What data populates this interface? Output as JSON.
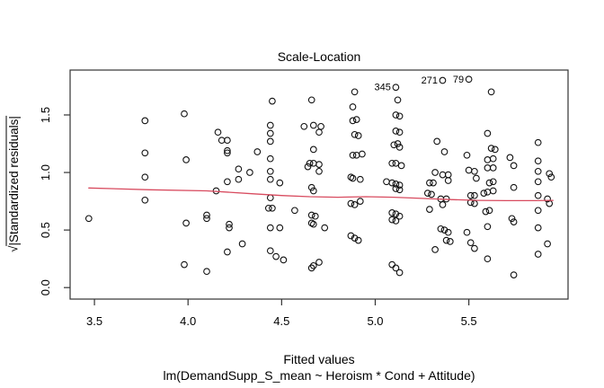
{
  "chart_data": {
    "type": "scatter",
    "title": "Scale-Location",
    "xlabel": "Fitted values",
    "xlabel2": "lm(DemandSupp_S_mean ~ Heroism * Cond + Attitude)",
    "ylabel": "√|Standardized residuals|",
    "ylabel_sqrt": "√",
    "ylabel_rest": "|Standardized residuals|",
    "x_range": [
      3.37,
      6.03
    ],
    "y_range": [
      -0.1,
      1.89
    ],
    "grid": false,
    "x_ticks": [
      {
        "value": 3.5,
        "label": "3.5"
      },
      {
        "value": 4.0,
        "label": "4.0"
      },
      {
        "value": 4.5,
        "label": "4.5"
      },
      {
        "value": 5.0,
        "label": "5.0"
      },
      {
        "value": 5.5,
        "label": "5.5"
      }
    ],
    "y_ticks": [
      {
        "value": 0.0,
        "label": "0.0"
      },
      {
        "value": 0.5,
        "label": "0.5"
      },
      {
        "value": 1.0,
        "label": "1.0"
      },
      {
        "value": 1.5,
        "label": "1.5"
      }
    ],
    "point_style": {
      "shape": "open-circle",
      "radius": 3.3,
      "stroke": "#111111"
    },
    "smoother_color": "#d84b5f",
    "labeled_points": [
      {
        "label": "345",
        "x": 5.11,
        "y": 1.74
      },
      {
        "label": "271",
        "x": 5.36,
        "y": 1.8
      },
      {
        "label": "79",
        "x": 5.5,
        "y": 1.81
      }
    ],
    "smoother": [
      [
        3.47,
        0.865
      ],
      [
        3.8,
        0.85
      ],
      [
        4.1,
        0.84
      ],
      [
        4.35,
        0.815
      ],
      [
        4.5,
        0.8
      ],
      [
        4.65,
        0.79
      ],
      [
        4.8,
        0.785
      ],
      [
        4.95,
        0.79
      ],
      [
        5.1,
        0.785
      ],
      [
        5.25,
        0.775
      ],
      [
        5.4,
        0.765
      ],
      [
        5.55,
        0.758
      ],
      [
        5.7,
        0.755
      ],
      [
        5.85,
        0.755
      ],
      [
        5.95,
        0.758
      ]
    ],
    "points": [
      [
        3.47,
        0.6
      ],
      [
        3.77,
        1.45
      ],
      [
        3.77,
        1.17
      ],
      [
        3.77,
        0.96
      ],
      [
        3.77,
        0.76
      ],
      [
        3.98,
        1.51
      ],
      [
        3.99,
        1.11
      ],
      [
        3.99,
        0.56
      ],
      [
        3.98,
        0.2
      ],
      [
        4.1,
        0.63
      ],
      [
        4.1,
        0.6
      ],
      [
        4.1,
        0.14
      ],
      [
        4.16,
        1.35
      ],
      [
        4.18,
        1.28
      ],
      [
        4.21,
        1.28
      ],
      [
        4.21,
        1.19
      ],
      [
        4.21,
        1.17
      ],
      [
        4.21,
        0.92
      ],
      [
        4.15,
        0.84
      ],
      [
        4.22,
        0.55
      ],
      [
        4.22,
        0.52
      ],
      [
        4.21,
        0.31
      ],
      [
        4.37,
        1.18
      ],
      [
        4.27,
        1.03
      ],
      [
        4.33,
        1.0
      ],
      [
        4.27,
        0.94
      ],
      [
        4.29,
        0.38
      ],
      [
        4.45,
        1.62
      ],
      [
        4.44,
        1.41
      ],
      [
        4.44,
        1.34
      ],
      [
        4.44,
        1.27
      ],
      [
        4.44,
        1.12
      ],
      [
        4.44,
        1.01
      ],
      [
        4.44,
        0.94
      ],
      [
        4.49,
        0.91
      ],
      [
        4.44,
        0.78
      ],
      [
        4.43,
        0.69
      ],
      [
        4.45,
        0.69
      ],
      [
        4.57,
        0.67
      ],
      [
        4.44,
        0.52
      ],
      [
        4.49,
        0.52
      ],
      [
        4.44,
        0.32
      ],
      [
        4.47,
        0.27
      ],
      [
        4.51,
        0.24
      ],
      [
        4.66,
        1.63
      ],
      [
        4.62,
        1.4
      ],
      [
        4.67,
        1.41
      ],
      [
        4.71,
        1.4
      ],
      [
        4.7,
        1.35
      ],
      [
        4.67,
        1.2
      ],
      [
        4.65,
        1.08
      ],
      [
        4.67,
        1.08
      ],
      [
        4.7,
        1.07
      ],
      [
        4.64,
        1.05
      ],
      [
        4.7,
        1.01
      ],
      [
        4.66,
        0.87
      ],
      [
        4.67,
        0.84
      ],
      [
        4.66,
        0.63
      ],
      [
        4.68,
        0.62
      ],
      [
        4.66,
        0.56
      ],
      [
        4.67,
        0.55
      ],
      [
        4.73,
        0.52
      ],
      [
        4.7,
        0.22
      ],
      [
        4.67,
        0.19
      ],
      [
        4.66,
        0.17
      ],
      [
        4.89,
        1.7
      ],
      [
        4.88,
        1.57
      ],
      [
        4.88,
        1.45
      ],
      [
        4.9,
        1.46
      ],
      [
        4.89,
        1.33
      ],
      [
        4.91,
        1.32
      ],
      [
        4.88,
        1.15
      ],
      [
        4.9,
        1.15
      ],
      [
        4.93,
        1.16
      ],
      [
        4.87,
        0.96
      ],
      [
        4.88,
        0.95
      ],
      [
        4.92,
        0.94
      ],
      [
        4.87,
        0.73
      ],
      [
        4.89,
        0.72
      ],
      [
        4.92,
        0.75
      ],
      [
        4.87,
        0.45
      ],
      [
        4.89,
        0.43
      ],
      [
        4.91,
        0.41
      ],
      [
        5.12,
        1.63
      ],
      [
        5.11,
        1.5
      ],
      [
        5.13,
        1.49
      ],
      [
        5.11,
        1.36
      ],
      [
        5.13,
        1.35
      ],
      [
        5.1,
        1.24
      ],
      [
        5.12,
        1.25
      ],
      [
        5.13,
        1.22
      ],
      [
        5.09,
        1.08
      ],
      [
        5.11,
        1.08
      ],
      [
        5.14,
        1.06
      ],
      [
        5.06,
        0.92
      ],
      [
        5.09,
        0.91
      ],
      [
        5.11,
        0.9
      ],
      [
        5.13,
        0.89
      ],
      [
        5.11,
        0.86
      ],
      [
        5.13,
        0.85
      ],
      [
        5.09,
        0.65
      ],
      [
        5.11,
        0.64
      ],
      [
        5.13,
        0.62
      ],
      [
        5.09,
        0.59
      ],
      [
        5.11,
        0.58
      ],
      [
        5.09,
        0.2
      ],
      [
        5.11,
        0.17
      ],
      [
        5.13,
        0.13
      ],
      [
        5.33,
        1.27
      ],
      [
        5.37,
        1.18
      ],
      [
        5.32,
        1.0
      ],
      [
        5.36,
        0.98
      ],
      [
        5.39,
        0.98
      ],
      [
        5.39,
        0.93
      ],
      [
        5.29,
        0.91
      ],
      [
        5.31,
        0.91
      ],
      [
        5.28,
        0.82
      ],
      [
        5.3,
        0.81
      ],
      [
        5.35,
        0.77
      ],
      [
        5.38,
        0.77
      ],
      [
        5.36,
        0.72
      ],
      [
        5.29,
        0.68
      ],
      [
        5.35,
        0.51
      ],
      [
        5.37,
        0.5
      ],
      [
        5.39,
        0.48
      ],
      [
        5.38,
        0.41
      ],
      [
        5.4,
        0.4
      ],
      [
        5.32,
        0.33
      ],
      [
        5.49,
        1.15
      ],
      [
        5.5,
        1.02
      ],
      [
        5.53,
        1.01
      ],
      [
        5.54,
        0.95
      ],
      [
        5.51,
        0.8
      ],
      [
        5.53,
        0.8
      ],
      [
        5.51,
        0.74
      ],
      [
        5.53,
        0.73
      ],
      [
        5.49,
        0.48
      ],
      [
        5.51,
        0.39
      ],
      [
        5.53,
        0.34
      ],
      [
        5.62,
        1.7
      ],
      [
        5.6,
        1.34
      ],
      [
        5.62,
        1.21
      ],
      [
        5.64,
        1.2
      ],
      [
        5.6,
        1.11
      ],
      [
        5.63,
        1.12
      ],
      [
        5.6,
        1.04
      ],
      [
        5.63,
        1.04
      ],
      [
        5.61,
        0.91
      ],
      [
        5.63,
        0.92
      ],
      [
        5.58,
        0.82
      ],
      [
        5.6,
        0.83
      ],
      [
        5.63,
        0.84
      ],
      [
        5.59,
        0.66
      ],
      [
        5.61,
        0.67
      ],
      [
        5.6,
        0.53
      ],
      [
        5.6,
        0.25
      ],
      [
        5.72,
        1.13
      ],
      [
        5.74,
        1.06
      ],
      [
        5.74,
        0.87
      ],
      [
        5.73,
        0.6
      ],
      [
        5.74,
        0.57
      ],
      [
        5.74,
        0.11
      ],
      [
        5.87,
        1.26
      ],
      [
        5.87,
        1.1
      ],
      [
        5.87,
        1.01
      ],
      [
        5.87,
        0.92
      ],
      [
        5.87,
        0.8
      ],
      [
        5.87,
        0.67
      ],
      [
        5.87,
        0.52
      ],
      [
        5.87,
        0.29
      ],
      [
        5.93,
        0.99
      ],
      [
        5.94,
        0.96
      ],
      [
        5.92,
        0.77
      ],
      [
        5.93,
        0.73
      ],
      [
        5.92,
        0.38
      ]
    ]
  }
}
